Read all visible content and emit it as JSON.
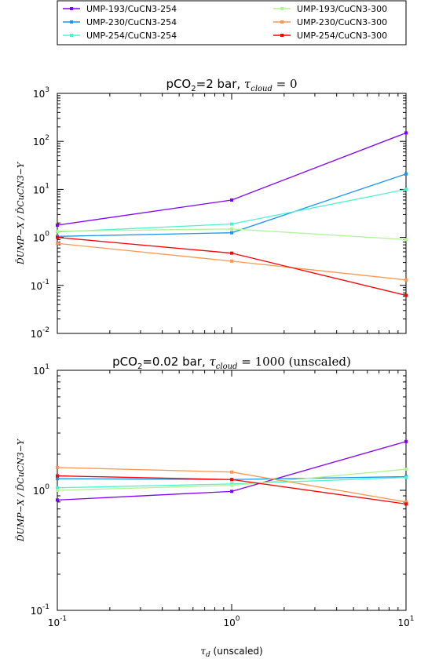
{
  "legend": [
    {
      "name": "UMP-193/CuCN3-254",
      "color": "#8000ff"
    },
    {
      "name": "UMP-193/CuCN3-300",
      "color": "#b2f396"
    },
    {
      "name": "UMP-230/CuCN3-254",
      "color": "#1996f3"
    },
    {
      "name": "UMP-230/CuCN3-300",
      "color": "#ff964f"
    },
    {
      "name": "UMP-254/CuCN3-254",
      "color": "#4cf2ce"
    },
    {
      "name": "UMP-254/CuCN3-300",
      "color": "#ff0000"
    }
  ],
  "chart_data": [
    {
      "type": "line",
      "title_prefix": "pCO",
      "title_sub": "2",
      "title_mid": "=2 bar, ",
      "title_math": "τ",
      "title_math_sub": "cloud",
      "title_suffix": " = 0",
      "ylabel": "D̄UMP−X / D̄CuCN3−Y",
      "xscale": "log",
      "yscale": "log",
      "xlim": [
        0.1,
        10
      ],
      "ylim": [
        0.01,
        1000
      ],
      "x": [
        0.1,
        1,
        10
      ],
      "series": [
        {
          "name": "UMP-193/CuCN3-254",
          "color": "#8000ff",
          "values": [
            1.8,
            6.0,
            150
          ]
        },
        {
          "name": "UMP-230/CuCN3-254",
          "color": "#1996f3",
          "values": [
            1.05,
            1.25,
            21
          ]
        },
        {
          "name": "UMP-254/CuCN3-254",
          "color": "#4cf2ce",
          "values": [
            1.3,
            1.9,
            10
          ]
        },
        {
          "name": "UMP-193/CuCN3-300",
          "color": "#b2f396",
          "values": [
            1.35,
            1.5,
            0.9
          ]
        },
        {
          "name": "UMP-230/CuCN3-300",
          "color": "#ff964f",
          "values": [
            0.75,
            0.32,
            0.13
          ]
        },
        {
          "name": "UMP-254/CuCN3-300",
          "color": "#ff0000",
          "values": [
            1.0,
            0.47,
            0.062
          ]
        }
      ],
      "yticks": [
        {
          "base": "10",
          "exp": "-2"
        },
        {
          "base": "10",
          "exp": "-1"
        },
        {
          "base": "10",
          "exp": "0"
        },
        {
          "base": "10",
          "exp": "1"
        },
        {
          "base": "10",
          "exp": "2"
        },
        {
          "base": "10",
          "exp": "3"
        }
      ]
    },
    {
      "type": "line",
      "title_prefix": "pCO",
      "title_sub": "2",
      "title_mid": "=0.02 bar, ",
      "title_math": "τ",
      "title_math_sub": "cloud",
      "title_suffix": " = 1000 (unscaled)",
      "ylabel": "D̄UMP−X / D̄CuCN3−Y",
      "xlabel_math": "τ",
      "xlabel_math_sub": "d",
      "xlabel_suffix": " (unscaled)",
      "xscale": "log",
      "yscale": "log",
      "xlim": [
        0.1,
        10
      ],
      "ylim": [
        0.1,
        10
      ],
      "x": [
        0.1,
        1,
        10
      ],
      "series": [
        {
          "name": "UMP-193/CuCN3-254",
          "color": "#8000ff",
          "values": [
            0.83,
            0.98,
            2.55
          ]
        },
        {
          "name": "UMP-230/CuCN3-254",
          "color": "#1996f3",
          "values": [
            1.25,
            1.23,
            1.3
          ]
        },
        {
          "name": "UMP-254/CuCN3-254",
          "color": "#4cf2ce",
          "values": [
            1.05,
            1.13,
            1.28
          ]
        },
        {
          "name": "UMP-193/CuCN3-300",
          "color": "#b2f396",
          "values": [
            1.0,
            1.1,
            1.5
          ]
        },
        {
          "name": "UMP-230/CuCN3-300",
          "color": "#ff964f",
          "values": [
            1.55,
            1.42,
            0.8
          ]
        },
        {
          "name": "UMP-254/CuCN3-300",
          "color": "#ff0000",
          "values": [
            1.32,
            1.23,
            0.77
          ]
        }
      ],
      "yticks": [
        {
          "base": "10",
          "exp": "-1"
        },
        {
          "base": "10",
          "exp": "0"
        },
        {
          "base": "10",
          "exp": "1"
        }
      ],
      "xticks": [
        {
          "base": "10",
          "exp": "-1"
        },
        {
          "base": "10",
          "exp": "0"
        },
        {
          "base": "10",
          "exp": "1"
        }
      ]
    }
  ]
}
